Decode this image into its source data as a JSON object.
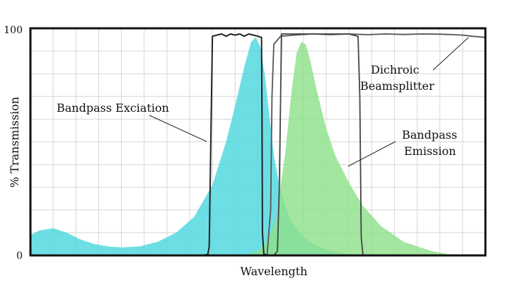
{
  "chart_data": {
    "type": "area",
    "xlabel": "Wavelength",
    "ylabel": "% Transmission",
    "xlim": [
      0,
      100
    ],
    "ylim": [
      0,
      100
    ],
    "y_ticks": [
      "0",
      "100"
    ],
    "x_ticks": [],
    "grid": true,
    "series": [
      {
        "kind": "area",
        "color": "#55d8e0",
        "x": [
          0,
          2,
          5,
          8,
          11,
          14,
          17,
          20,
          24,
          28,
          32,
          36,
          40,
          43,
          45,
          47,
          48.5,
          49.5,
          50.5,
          51.5,
          52.5,
          53.5,
          55,
          57,
          60,
          63,
          66,
          70,
          74,
          100
        ],
        "y": [
          9,
          11,
          12,
          10,
          7,
          5,
          4,
          3.5,
          4,
          6,
          10,
          17,
          31,
          50,
          66,
          83,
          94,
          96,
          92,
          80,
          62,
          44,
          28,
          16,
          8,
          4,
          2,
          0.5,
          0,
          0
        ]
      },
      {
        "kind": "area",
        "color": "#8ee08a",
        "x": [
          0,
          45,
          48,
          50,
          52,
          54,
          56,
          57.5,
          58.5,
          59.5,
          60.5,
          61.5,
          63,
          65,
          67,
          70,
          73,
          77,
          82,
          88,
          92,
          100
        ],
        "y": [
          0,
          0,
          0.5,
          2,
          6,
          16,
          45,
          74,
          89,
          94,
          93,
          86,
          72,
          56,
          44,
          32,
          22,
          13,
          6,
          2,
          0.5,
          0
        ]
      },
      {
        "kind": "line",
        "color": "#222222",
        "x": [
          0,
          38,
          39,
          39.3,
          40,
          42,
          43,
          44,
          45,
          46,
          47,
          48,
          49,
          50,
          50.8,
          50.9,
          51,
          51.3,
          52.5,
          100
        ],
        "y": [
          0,
          0,
          0.5,
          4,
          96.5,
          97.5,
          96.5,
          97.5,
          97,
          97.5,
          96.5,
          97.5,
          97,
          96.5,
          96,
          60,
          10,
          0.5,
          0,
          0
        ]
      },
      {
        "kind": "line",
        "color": "#555555",
        "x": [
          0,
          52,
          52.8,
          53.1,
          53.5,
          55,
          58,
          62,
          66,
          70,
          74,
          78,
          82,
          86,
          90,
          93,
          95,
          97,
          100
        ],
        "y": [
          0,
          0,
          20,
          70,
          93,
          96.5,
          97,
          97.5,
          97.2,
          97.5,
          97.2,
          97.5,
          97.3,
          97.5,
          97.4,
          97.2,
          97,
          96.5,
          96
        ]
      },
      {
        "kind": "line",
        "color": "#444444",
        "x": [
          0,
          53.5,
          54.3,
          54.7,
          55.2,
          58,
          62,
          66,
          70,
          72,
          72.4,
          72.7,
          73.1,
          100
        ],
        "y": [
          0,
          0,
          2,
          30,
          97.5,
          97.5,
          97.5,
          97.5,
          97.5,
          96.5,
          70,
          8,
          0,
          0
        ]
      }
    ],
    "annotations": [
      {
        "lines": [
          "Bandpass Exciation"
        ]
      },
      {
        "lines": [
          "Dichroic",
          "Beamsplitter"
        ]
      },
      {
        "lines": [
          "Bandpass",
          "Emission"
        ]
      }
    ]
  }
}
